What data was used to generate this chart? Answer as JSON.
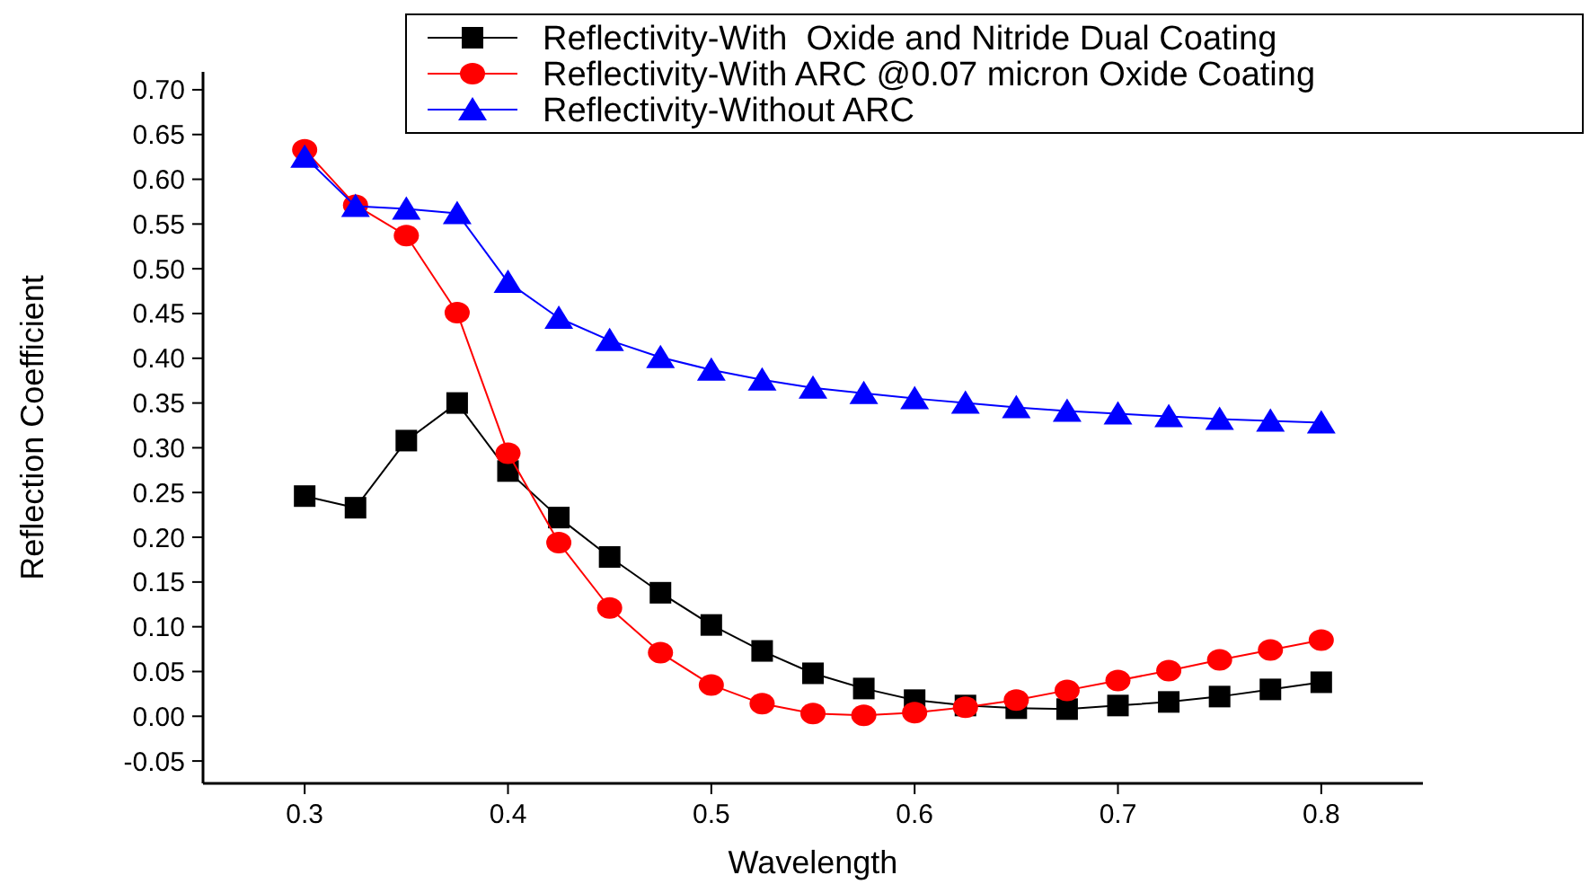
{
  "chart_data": {
    "type": "line",
    "xlabel": "Wavelength",
    "ylabel": "Reflection Coefficient",
    "x": [
      0.3,
      0.325,
      0.35,
      0.375,
      0.4,
      0.425,
      0.45,
      0.475,
      0.5,
      0.525,
      0.55,
      0.575,
      0.6,
      0.625,
      0.65,
      0.675,
      0.7,
      0.725,
      0.75,
      0.775,
      0.8
    ],
    "series": [
      {
        "name": "Reflectivity-With  Oxide and Nitride Dual Coating",
        "color": "#000000",
        "marker": "square",
        "values": [
          0.246,
          0.233,
          0.308,
          0.35,
          0.274,
          0.222,
          0.178,
          0.138,
          0.102,
          0.073,
          0.048,
          0.031,
          0.018,
          0.012,
          0.009,
          0.008,
          0.012,
          0.016,
          0.022,
          0.03,
          0.038
        ]
      },
      {
        "name": "Reflectivity-With ARC @0.07 micron Oxide Coating",
        "color": "#ff0000",
        "marker": "circle",
        "values": [
          0.633,
          0.571,
          0.537,
          0.451,
          0.294,
          0.194,
          0.121,
          0.071,
          0.035,
          0.014,
          0.003,
          0.001,
          0.004,
          0.01,
          0.018,
          0.029,
          0.04,
          0.051,
          0.063,
          0.074,
          0.085
        ]
      },
      {
        "name": "Reflectivity-Without ARC",
        "color": "#0000ff",
        "marker": "triangle",
        "values": [
          0.625,
          0.57,
          0.567,
          0.562,
          0.485,
          0.445,
          0.42,
          0.401,
          0.387,
          0.376,
          0.367,
          0.361,
          0.355,
          0.35,
          0.345,
          0.341,
          0.338,
          0.335,
          0.332,
          0.33,
          0.328
        ]
      }
    ],
    "xlim": [
      0.25,
      0.85
    ],
    "xticks": [
      0.3,
      0.4,
      0.5,
      0.6,
      0.7,
      0.8
    ],
    "ylim": [
      -0.075,
      0.72
    ],
    "yticks": [
      {
        "value": -0.05,
        "label": "-0.05"
      },
      {
        "value": 0,
        "label": "0.00"
      },
      {
        "value": 0.05,
        "label": "0.05"
      },
      {
        "value": 0.1,
        "label": "0.10"
      },
      {
        "value": 0.15,
        "label": "0.15"
      },
      {
        "value": 0.2,
        "label": "0.20"
      },
      {
        "value": 0.25,
        "label": "0.25"
      },
      {
        "value": 0.3,
        "label": "0.30"
      },
      {
        "value": 0.35,
        "label": "0.35"
      },
      {
        "value": 0.4,
        "label": "0.40"
      },
      {
        "value": 0.45,
        "label": "0.45"
      },
      {
        "value": 0.5,
        "label": "0.50"
      },
      {
        "value": 0.55,
        "label": "0.55"
      },
      {
        "value": 0.6,
        "label": "0.60"
      },
      {
        "value": 0.65,
        "label": "0.65"
      },
      {
        "value": 0.7,
        "label": "0.70"
      }
    ],
    "legend": "top right",
    "grid": false
  }
}
